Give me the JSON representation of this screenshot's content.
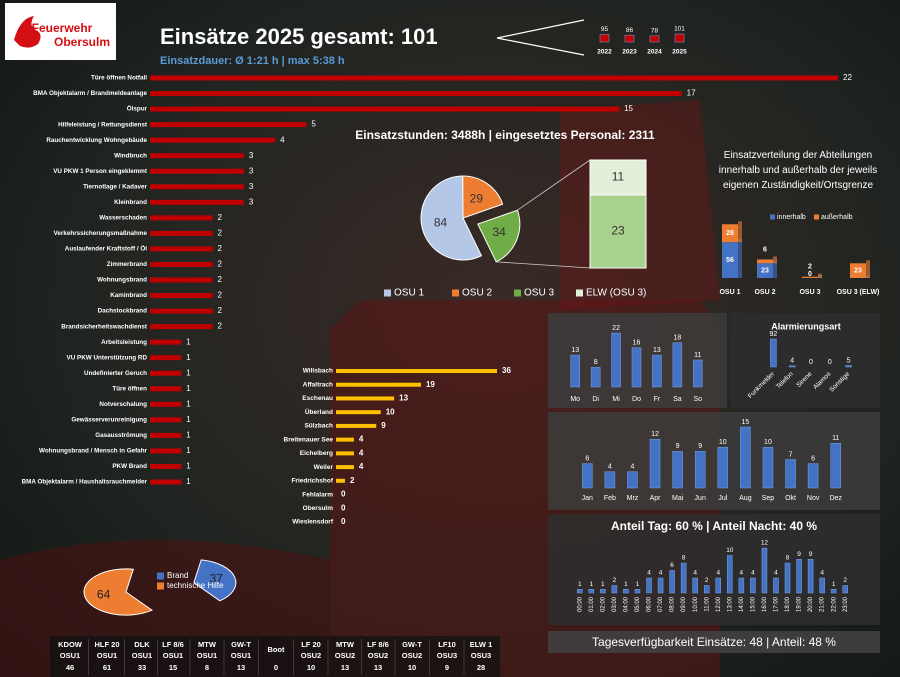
{
  "header": {
    "logo": [
      "Feuerwehr",
      "Obersulm"
    ],
    "title": "Einsätze 2025 gesamt: 101",
    "subtitle": "Einsatzdauer: Ø 1:21 h | max 5:38 h"
  },
  "chart_data": [
    {
      "type": "bar",
      "categories": [
        "2022",
        "2023",
        "2024",
        "2025"
      ],
      "values": [
        95,
        86,
        78,
        101
      ],
      "color": "#c00000"
    },
    {
      "type": "hbar",
      "color": "#c00000",
      "categories": [
        "Türe öffnen Notfall",
        "BMA Objektalarm / Brandmeldeanlage",
        "Ölspur",
        "Hilfeleistung / Rettungsdienst",
        "Rauchentwicklung Wohngebäude",
        "Windbruch",
        "VU PKW 1 Person eingeklemmt",
        "Tiernotlage / Kadaver",
        "Kleinbrand",
        "Wasserschaden",
        "Verkehrssicherungsmaßnahme",
        "Auslaufender Kraftstoff / Öl",
        "Zimmerbrand",
        "Wohnungsbrand",
        "Kaminbrand",
        "Dachstockbrand",
        "Brandsicherheitswachdienst",
        "Arbeitsleistung",
        "VU PKW Unterstützung RD",
        "Undefinierter Geruch",
        "Türe öffnen",
        "Notverschalung",
        "Gewässerverunreinigung",
        "Gasausströmung",
        "Wohnungsbrand / Mensch in Gefahr",
        "PKW Brand",
        "BMA Objektalarm / Haushaltsrauchmelder"
      ],
      "values": [
        22,
        17,
        15,
        5,
        4,
        3,
        3,
        3,
        3,
        2,
        2,
        2,
        2,
        2,
        2,
        2,
        2,
        1,
        1,
        1,
        1,
        1,
        1,
        1,
        1,
        1,
        1
      ]
    },
    {
      "type": "pie",
      "title": "Einsatzstunden: 3488h | eingesetztes Personal: 2311",
      "categories": [
        "OSU 1",
        "OSU 2",
        "OSU 3"
      ],
      "values": [
        84,
        29,
        34
      ],
      "colors": [
        "#b4c7e7",
        "#ed7d31",
        "#70ad47"
      ],
      "breakout": {
        "name": "ELW (OSU 3)",
        "values": [
          11,
          23
        ],
        "colors": [
          "#e2f0d9",
          "#a9d18e"
        ]
      }
    },
    {
      "type": "stacked",
      "title": "Einsatzverteilung der Abteilungen innerhalb und außerhalb der jeweils eigenen Zuständigkeit/Ortsgrenze",
      "categories": [
        "OSU 1",
        "OSU 2",
        "OSU 3",
        "OSU 3 (ELW)"
      ],
      "series": [
        {
          "name": "innerhalb",
          "color": "#4472c4",
          "values": [
            56,
            23,
            0,
            0
          ]
        },
        {
          "name": "außerhalb",
          "color": "#ed7d31",
          "values": [
            28,
            6,
            2,
            23
          ]
        }
      ]
    },
    {
      "type": "hbar",
      "color": "#ffc000",
      "categories": [
        "Willsbach",
        "Affaltrach",
        "Eschenau",
        "Überland",
        "Sülzbach",
        "Breitenauer See",
        "Eichelberg",
        "Weiler",
        "Friedrichshof",
        "Fehlalarm",
        "Obersulm",
        "Wieslensdorf"
      ],
      "values": [
        36,
        19,
        13,
        10,
        9,
        4,
        4,
        4,
        2,
        0,
        0,
        0
      ]
    },
    {
      "type": "bar",
      "color": "#4472c4",
      "categories": [
        "Mo",
        "Di",
        "Mi",
        "Do",
        "Fr",
        "Sa",
        "So"
      ],
      "values": [
        13,
        8,
        22,
        16,
        13,
        18,
        11
      ]
    },
    {
      "type": "bar",
      "title": "Alarmierungsart",
      "color": "#4472c4",
      "categories": [
        "Funkmelder",
        "Telefon",
        "Sirene",
        "Alamos",
        "Sonstige"
      ],
      "values": [
        92,
        4,
        0,
        0,
        5
      ]
    },
    {
      "type": "bar",
      "color": "#4472c4",
      "categories": [
        "Jan",
        "Feb",
        "Mrz",
        "Apr",
        "Mai",
        "Jun",
        "Jul",
        "Aug",
        "Sep",
        "Okt",
        "Nov",
        "Dez"
      ],
      "values": [
        6,
        4,
        4,
        12,
        9,
        9,
        10,
        15,
        10,
        7,
        6,
        11
      ]
    },
    {
      "type": "bar",
      "title": "Anteil Tag: 60 % | Anteil Nacht: 40 %",
      "color": "#4472c4",
      "categories": [
        "00:00",
        "01:00",
        "02:00",
        "03:00",
        "04:00",
        "05:00",
        "06:00",
        "07:00",
        "08:00",
        "09:00",
        "10:00",
        "11:00",
        "12:00",
        "13:00",
        "14:00",
        "15:00",
        "16:00",
        "17:00",
        "18:00",
        "19:00",
        "20:00",
        "21:00",
        "22:00",
        "23:00"
      ],
      "values": [
        1,
        1,
        1,
        2,
        1,
        1,
        4,
        4,
        6,
        8,
        4,
        2,
        4,
        10,
        4,
        4,
        12,
        4,
        8,
        9,
        9,
        4,
        1,
        2
      ]
    },
    {
      "type": "pie",
      "categories": [
        "Brand",
        "technische Hilfe"
      ],
      "values": [
        37,
        64
      ],
      "colors": [
        "#4472c4",
        "#ed7d31"
      ]
    }
  ],
  "footer": "Tagesverfügbarkeit Einsätze: 48 | Anteil: 48 %",
  "table": {
    "vehicles": [
      {
        "name": "KDOW",
        "unit": "OSU1",
        "value": 46
      },
      {
        "name": "HLF 20",
        "unit": "OSU1",
        "value": 61
      },
      {
        "name": "DLK",
        "unit": "OSU1",
        "value": 33
      },
      {
        "name": "LF 8/6",
        "unit": "OSU1",
        "value": 15
      },
      {
        "name": "MTW",
        "unit": "OSU1",
        "value": 8
      },
      {
        "name": "GW-T",
        "unit": "OSU1",
        "value": 13
      },
      {
        "name": "Boot",
        "value": 0
      },
      {
        "name": "LF 20",
        "unit": "OSU2",
        "value": 10
      },
      {
        "name": "MTW",
        "unit": "OSU2",
        "value": 13
      },
      {
        "name": "LF 8/6",
        "unit": "OSU2",
        "value": 13
      },
      {
        "name": "GW-T",
        "unit": "OSU2",
        "value": 10
      },
      {
        "name": "LF10",
        "unit": "OSU3",
        "value": 9
      },
      {
        "name": "ELW 1",
        "unit": "OSU3",
        "value": 28
      }
    ]
  }
}
